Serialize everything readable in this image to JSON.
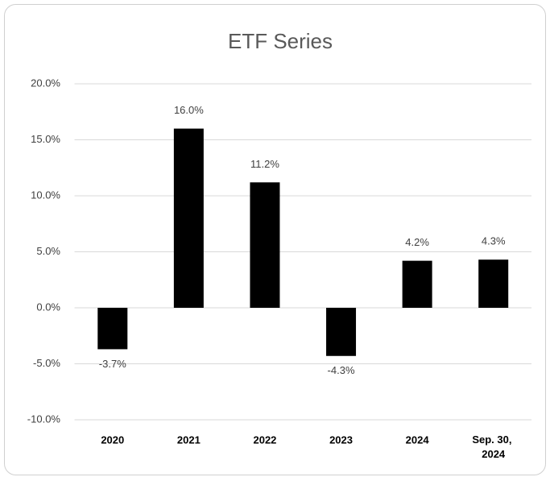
{
  "chart_data": {
    "type": "bar",
    "title": "ETF Series",
    "categories": [
      "2020",
      "2021",
      "2022",
      "2023",
      "2024",
      "Sep. 30, 2024"
    ],
    "values": [
      -3.7,
      16.0,
      11.2,
      -4.3,
      4.2,
      4.3
    ],
    "value_labels": [
      "-3.7%",
      "16.0%",
      "11.2%",
      "-4.3%",
      "4.2%",
      "4.3%"
    ],
    "color": "#000000",
    "ylim": [
      -10,
      20
    ],
    "yticks": [
      {
        "value": -10,
        "label": "-10.0%"
      },
      {
        "value": -5,
        "label": "-5.0%"
      },
      {
        "value": 0,
        "label": "0.0%"
      },
      {
        "value": 5,
        "label": "5.0%"
      },
      {
        "value": 10,
        "label": "10.0%"
      },
      {
        "value": 15,
        "label": "15.0%"
      },
      {
        "value": 20,
        "label": "20.0%"
      }
    ],
    "grid": true
  }
}
